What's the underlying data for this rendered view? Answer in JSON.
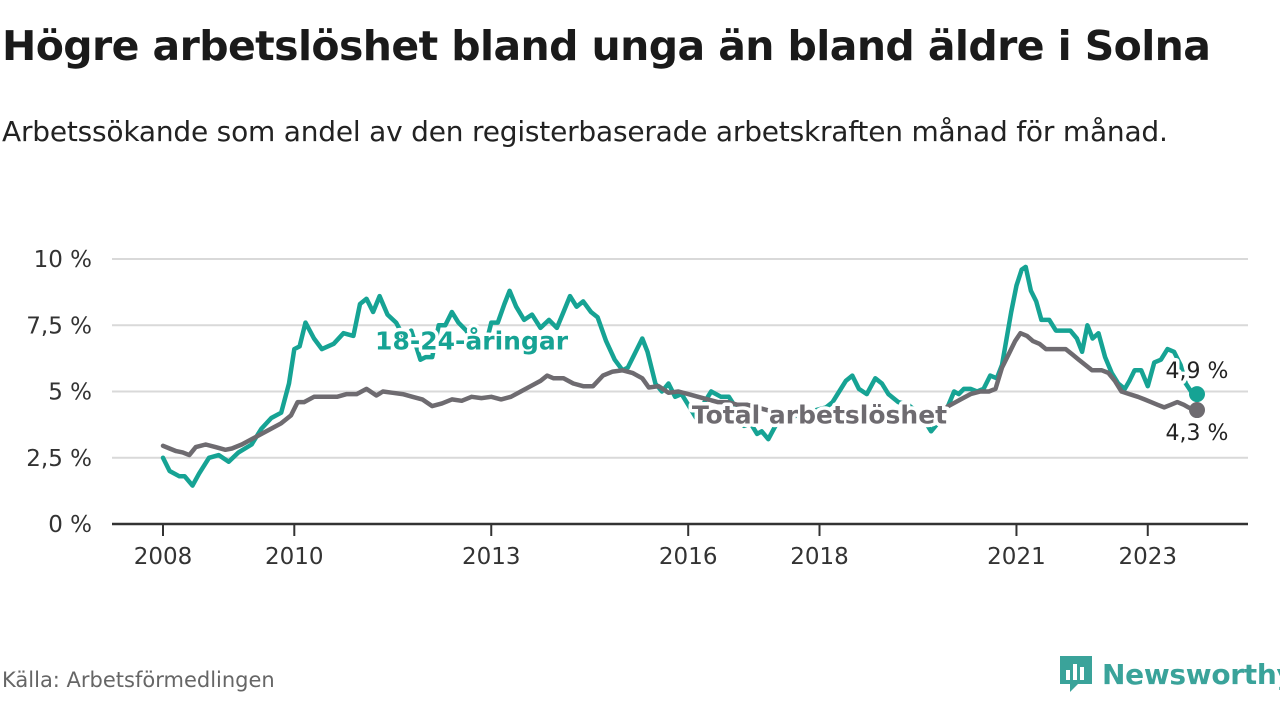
{
  "title": "Högre arbetslöshet bland unga än bland äldre i Solna",
  "subtitle": "Arbetssökande som andel av den registerbaserade arbetskraften månad för månad.",
  "source": "Källa: Arbetsförmedlingen",
  "brand": "Newsworthy",
  "colors": {
    "youth": "#16a394",
    "total": "#6e6b70",
    "grid": "#d9d9d9",
    "axis": "#333333"
  },
  "chart_data": {
    "type": "line",
    "title": "Högre arbetslöshet bland unga än bland äldre i Solna",
    "ylim": [
      0,
      10
    ],
    "yticks": [
      0,
      2.5,
      5,
      7.5,
      10
    ],
    "ytick_labels": [
      "0 %",
      "2,5 %",
      "5 %",
      "7,5 %",
      "10 %"
    ],
    "xlim": [
      2008,
      2023.75
    ],
    "xticks": [
      2008,
      2010,
      2013,
      2016,
      2018,
      2021,
      2023
    ],
    "xtick_labels": [
      "2008",
      "2010",
      "2013",
      "2016",
      "2018",
      "2021",
      "2023"
    ],
    "series": [
      {
        "name": "18-24-åringar",
        "label": "18-24-åringar",
        "color": "#16a394",
        "end_label": "4,9 %",
        "points": [
          [
            2008.0,
            2.5
          ],
          [
            2008.1,
            2.0
          ],
          [
            2008.25,
            1.8
          ],
          [
            2008.33,
            1.8
          ],
          [
            2008.45,
            1.45
          ],
          [
            2008.55,
            1.9
          ],
          [
            2008.7,
            2.5
          ],
          [
            2008.85,
            2.6
          ],
          [
            2009.0,
            2.35
          ],
          [
            2009.15,
            2.7
          ],
          [
            2009.35,
            3.0
          ],
          [
            2009.5,
            3.6
          ],
          [
            2009.65,
            4.0
          ],
          [
            2009.8,
            4.2
          ],
          [
            2009.92,
            5.3
          ],
          [
            2010.0,
            6.6
          ],
          [
            2010.08,
            6.7
          ],
          [
            2010.17,
            7.6
          ],
          [
            2010.3,
            7.0
          ],
          [
            2010.42,
            6.6
          ],
          [
            2010.6,
            6.8
          ],
          [
            2010.75,
            7.2
          ],
          [
            2010.9,
            7.1
          ],
          [
            2011.0,
            8.3
          ],
          [
            2011.1,
            8.5
          ],
          [
            2011.2,
            8.0
          ],
          [
            2011.3,
            8.6
          ],
          [
            2011.42,
            7.9
          ],
          [
            2011.55,
            7.6
          ],
          [
            2011.68,
            7.0
          ],
          [
            2011.78,
            7.3
          ],
          [
            2011.92,
            6.2
          ],
          [
            2012.0,
            6.3
          ],
          [
            2012.1,
            6.3
          ],
          [
            2012.2,
            7.5
          ],
          [
            2012.3,
            7.5
          ],
          [
            2012.4,
            8.0
          ],
          [
            2012.5,
            7.6
          ],
          [
            2012.62,
            7.3
          ],
          [
            2012.75,
            6.8
          ],
          [
            2012.9,
            6.6
          ],
          [
            2013.0,
            7.6
          ],
          [
            2013.1,
            7.6
          ],
          [
            2013.2,
            8.3
          ],
          [
            2013.28,
            8.8
          ],
          [
            2013.38,
            8.2
          ],
          [
            2013.5,
            7.7
          ],
          [
            2013.62,
            7.9
          ],
          [
            2013.75,
            7.4
          ],
          [
            2013.88,
            7.7
          ],
          [
            2014.0,
            7.4
          ],
          [
            2014.1,
            8.0
          ],
          [
            2014.2,
            8.6
          ],
          [
            2014.3,
            8.2
          ],
          [
            2014.4,
            8.4
          ],
          [
            2014.52,
            8.0
          ],
          [
            2014.62,
            7.8
          ],
          [
            2014.75,
            6.9
          ],
          [
            2014.88,
            6.2
          ],
          [
            2015.0,
            5.8
          ],
          [
            2015.08,
            5.9
          ],
          [
            2015.2,
            6.5
          ],
          [
            2015.3,
            7.0
          ],
          [
            2015.38,
            6.5
          ],
          [
            2015.5,
            5.3
          ],
          [
            2015.6,
            5.0
          ],
          [
            2015.7,
            5.3
          ],
          [
            2015.8,
            4.8
          ],
          [
            2015.9,
            4.9
          ],
          [
            2016.0,
            4.5
          ],
          [
            2016.12,
            4.0
          ],
          [
            2016.25,
            4.6
          ],
          [
            2016.35,
            5.0
          ],
          [
            2016.5,
            4.8
          ],
          [
            2016.62,
            4.8
          ],
          [
            2016.75,
            4.3
          ],
          [
            2016.85,
            3.7
          ],
          [
            2016.95,
            3.8
          ],
          [
            2017.05,
            3.4
          ],
          [
            2017.12,
            3.5
          ],
          [
            2017.22,
            3.2
          ],
          [
            2017.35,
            3.8
          ],
          [
            2017.5,
            3.9
          ],
          [
            2017.65,
            4.1
          ],
          [
            2017.8,
            3.9
          ],
          [
            2017.95,
            4.3
          ],
          [
            2018.1,
            4.4
          ],
          [
            2018.2,
            4.6
          ],
          [
            2018.3,
            5.0
          ],
          [
            2018.4,
            5.4
          ],
          [
            2018.5,
            5.6
          ],
          [
            2018.6,
            5.1
          ],
          [
            2018.72,
            4.9
          ],
          [
            2018.85,
            5.5
          ],
          [
            2018.95,
            5.3
          ],
          [
            2019.05,
            4.9
          ],
          [
            2019.2,
            4.6
          ],
          [
            2019.35,
            4.5
          ],
          [
            2019.5,
            4.2
          ],
          [
            2019.6,
            3.9
          ],
          [
            2019.7,
            3.5
          ],
          [
            2019.8,
            3.8
          ],
          [
            2019.95,
            4.4
          ],
          [
            2020.05,
            5.0
          ],
          [
            2020.12,
            4.9
          ],
          [
            2020.2,
            5.1
          ],
          [
            2020.3,
            5.1
          ],
          [
            2020.4,
            5.0
          ],
          [
            2020.5,
            5.1
          ],
          [
            2020.6,
            5.6
          ],
          [
            2020.7,
            5.5
          ],
          [
            2020.78,
            6.0
          ],
          [
            2020.85,
            7.0
          ],
          [
            2020.92,
            8.0
          ],
          [
            2021.0,
            9.0
          ],
          [
            2021.08,
            9.6
          ],
          [
            2021.14,
            9.7
          ],
          [
            2021.22,
            8.8
          ],
          [
            2021.3,
            8.4
          ],
          [
            2021.38,
            7.7
          ],
          [
            2021.5,
            7.7
          ],
          [
            2021.6,
            7.3
          ],
          [
            2021.7,
            7.3
          ],
          [
            2021.82,
            7.3
          ],
          [
            2021.92,
            7.0
          ],
          [
            2022.0,
            6.5
          ],
          [
            2022.08,
            7.5
          ],
          [
            2022.16,
            7.0
          ],
          [
            2022.25,
            7.2
          ],
          [
            2022.35,
            6.3
          ],
          [
            2022.45,
            5.7
          ],
          [
            2022.55,
            5.3
          ],
          [
            2022.65,
            5.1
          ],
          [
            2022.72,
            5.4
          ],
          [
            2022.8,
            5.8
          ],
          [
            2022.9,
            5.8
          ],
          [
            2023.0,
            5.2
          ],
          [
            2023.1,
            6.1
          ],
          [
            2023.2,
            6.2
          ],
          [
            2023.3,
            6.6
          ],
          [
            2023.4,
            6.5
          ],
          [
            2023.5,
            6.0
          ],
          [
            2023.58,
            5.3
          ],
          [
            2023.66,
            5.0
          ],
          [
            2023.75,
            4.9
          ]
        ]
      },
      {
        "name": "Total arbetslöshet",
        "label": "Total arbetslöshet",
        "color": "#6e6b70",
        "end_label": "4,3 %",
        "points": [
          [
            2008.0,
            2.95
          ],
          [
            2008.1,
            2.85
          ],
          [
            2008.2,
            2.75
          ],
          [
            2008.3,
            2.7
          ],
          [
            2008.4,
            2.6
          ],
          [
            2008.5,
            2.9
          ],
          [
            2008.65,
            3.0
          ],
          [
            2008.8,
            2.9
          ],
          [
            2008.95,
            2.8
          ],
          [
            2009.05,
            2.85
          ],
          [
            2009.2,
            3.0
          ],
          [
            2009.35,
            3.2
          ],
          [
            2009.5,
            3.4
          ],
          [
            2009.65,
            3.6
          ],
          [
            2009.8,
            3.8
          ],
          [
            2009.95,
            4.1
          ],
          [
            2010.05,
            4.6
          ],
          [
            2010.15,
            4.6
          ],
          [
            2010.3,
            4.8
          ],
          [
            2010.5,
            4.8
          ],
          [
            2010.65,
            4.8
          ],
          [
            2010.8,
            4.9
          ],
          [
            2010.95,
            4.9
          ],
          [
            2011.1,
            5.1
          ],
          [
            2011.25,
            4.85
          ],
          [
            2011.35,
            5.0
          ],
          [
            2011.5,
            4.95
          ],
          [
            2011.65,
            4.9
          ],
          [
            2011.8,
            4.8
          ],
          [
            2011.95,
            4.7
          ],
          [
            2012.1,
            4.45
          ],
          [
            2012.25,
            4.55
          ],
          [
            2012.4,
            4.7
          ],
          [
            2012.55,
            4.65
          ],
          [
            2012.7,
            4.8
          ],
          [
            2012.85,
            4.75
          ],
          [
            2013.0,
            4.8
          ],
          [
            2013.15,
            4.7
          ],
          [
            2013.3,
            4.8
          ],
          [
            2013.45,
            5.0
          ],
          [
            2013.6,
            5.2
          ],
          [
            2013.75,
            5.4
          ],
          [
            2013.85,
            5.6
          ],
          [
            2013.95,
            5.5
          ],
          [
            2014.1,
            5.5
          ],
          [
            2014.25,
            5.3
          ],
          [
            2014.4,
            5.2
          ],
          [
            2014.55,
            5.2
          ],
          [
            2014.7,
            5.6
          ],
          [
            2014.85,
            5.75
          ],
          [
            2015.0,
            5.8
          ],
          [
            2015.15,
            5.7
          ],
          [
            2015.3,
            5.5
          ],
          [
            2015.4,
            5.15
          ],
          [
            2015.55,
            5.2
          ],
          [
            2015.7,
            4.95
          ],
          [
            2015.85,
            5.0
          ],
          [
            2016.0,
            4.9
          ],
          [
            2016.15,
            4.8
          ],
          [
            2016.3,
            4.7
          ],
          [
            2016.45,
            4.6
          ],
          [
            2016.6,
            4.6
          ],
          [
            2016.75,
            4.5
          ],
          [
            2016.9,
            4.5
          ],
          [
            2017.05,
            4.4
          ],
          [
            2017.2,
            4.3
          ],
          [
            2017.35,
            4.2
          ],
          [
            2017.5,
            4.15
          ],
          [
            2017.7,
            4.1
          ],
          [
            2017.9,
            4.1
          ],
          [
            2018.1,
            4.1
          ],
          [
            2018.3,
            4.15
          ],
          [
            2018.5,
            4.1
          ],
          [
            2018.7,
            4.1
          ],
          [
            2018.9,
            4.1
          ],
          [
            2019.1,
            4.15
          ],
          [
            2019.3,
            4.15
          ],
          [
            2019.5,
            4.15
          ],
          [
            2019.7,
            4.15
          ],
          [
            2019.85,
            4.3
          ],
          [
            2020.0,
            4.5
          ],
          [
            2020.15,
            4.7
          ],
          [
            2020.3,
            4.9
          ],
          [
            2020.45,
            5.0
          ],
          [
            2020.58,
            5.0
          ],
          [
            2020.68,
            5.1
          ],
          [
            2020.78,
            5.9
          ],
          [
            2020.88,
            6.4
          ],
          [
            2020.98,
            6.9
          ],
          [
            2021.06,
            7.2
          ],
          [
            2021.16,
            7.1
          ],
          [
            2021.25,
            6.9
          ],
          [
            2021.35,
            6.8
          ],
          [
            2021.45,
            6.6
          ],
          [
            2021.6,
            6.6
          ],
          [
            2021.75,
            6.6
          ],
          [
            2021.85,
            6.4
          ],
          [
            2021.95,
            6.2
          ],
          [
            2022.05,
            6.0
          ],
          [
            2022.15,
            5.8
          ],
          [
            2022.3,
            5.8
          ],
          [
            2022.4,
            5.7
          ],
          [
            2022.5,
            5.4
          ],
          [
            2022.6,
            5.0
          ],
          [
            2022.72,
            4.9
          ],
          [
            2022.85,
            4.8
          ],
          [
            2022.95,
            4.7
          ],
          [
            2023.05,
            4.6
          ],
          [
            2023.15,
            4.5
          ],
          [
            2023.25,
            4.4
          ],
          [
            2023.35,
            4.5
          ],
          [
            2023.45,
            4.6
          ],
          [
            2023.55,
            4.5
          ],
          [
            2023.62,
            4.4
          ],
          [
            2023.7,
            4.3
          ],
          [
            2023.75,
            4.3
          ]
        ]
      }
    ]
  }
}
